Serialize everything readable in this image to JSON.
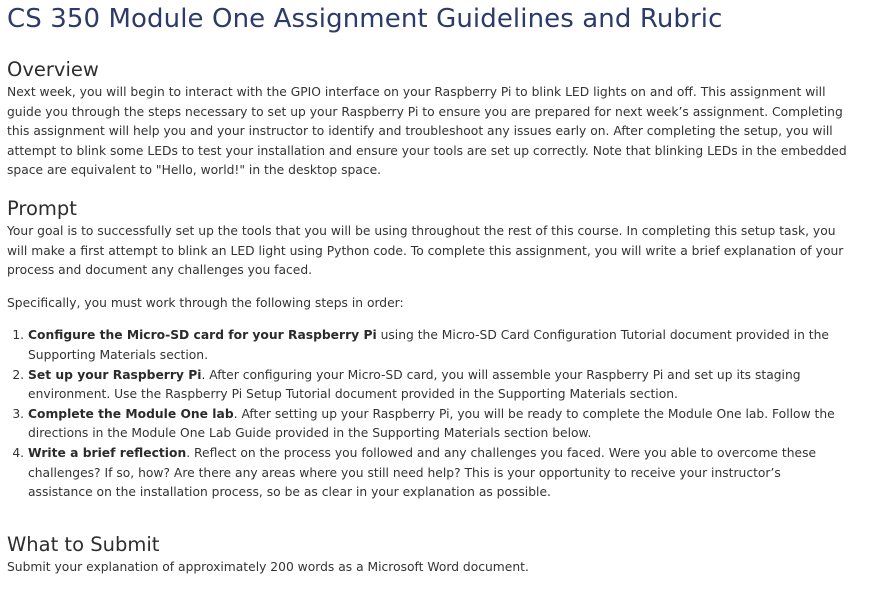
{
  "page_title": "CS 350 Module One Assignment Guidelines and Rubric",
  "overview": {
    "heading": "Overview",
    "text": "Next week, you will begin to interact with the GPIO interface on your Raspberry Pi to blink LED lights on and off. This assignment will guide you through the steps necessary to set up your Raspberry Pi to ensure you are prepared for next week’s assignment. Completing this assignment will help you and your instructor to identify and troubleshoot any issues early on. After completing the setup, you will attempt to blink some LEDs to test your installation and ensure your tools are set up correctly. Note that blinking LEDs in the embedded space are equivalent to \"Hello, world!\" in the desktop space."
  },
  "prompt": {
    "heading": "Prompt",
    "text": "Your goal is to successfully set up the tools that you will be using throughout the rest of this course. In completing this setup task, you will make a first attempt to blink an LED light using Python code. To complete this assignment, you will write a brief explanation of your process and document any challenges you faced.",
    "steps_intro": "Specifically, you must work through the following steps in order:",
    "steps": [
      {
        "bold": "Configure the Micro-SD card for your Raspberry Pi",
        "text": " using the Micro-SD Card Configuration Tutorial document provided in the Supporting Materials section."
      },
      {
        "bold": "Set up your Raspberry Pi",
        "text": ". After configuring your Micro-SD card, you will assemble your Raspberry Pi and set up its staging environment. Use the Raspberry Pi Setup Tutorial document provided in the Supporting Materials section."
      },
      {
        "bold": "Complete the Module One lab",
        "text": ". After setting up your Raspberry Pi, you will be ready to complete the Module One lab. Follow the directions in the Module One Lab Guide provided in the Supporting Materials section below."
      },
      {
        "bold": "Write a brief reflection",
        "text": ". Reflect on the process you followed and any challenges you faced. Were you able to overcome these challenges? If so, how? Are there any areas where you still need help? This is your opportunity to receive your instructor’s assistance on the installation process, so be as clear in your explanation as possible."
      }
    ]
  },
  "submit": {
    "heading": "What to Submit",
    "text": "Submit your explanation of approximately 200 words as a Microsoft Word document."
  }
}
